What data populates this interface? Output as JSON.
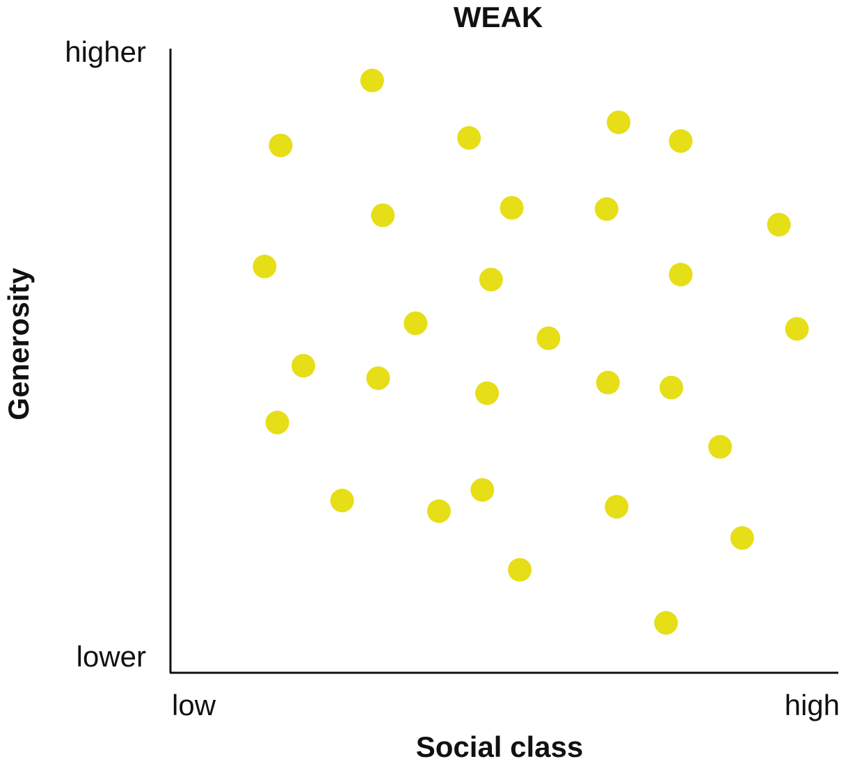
{
  "chart_data": {
    "type": "scatter",
    "title": "WEAK",
    "x_label": "Social class",
    "y_label": "Generosity",
    "xlim": [
      0,
      100
    ],
    "ylim": [
      0,
      100
    ],
    "xticks": [
      {
        "value": 0,
        "label": "low"
      },
      {
        "value": 100,
        "label": "high"
      }
    ],
    "yticks": [
      {
        "value": 0,
        "label": "lower"
      },
      {
        "value": 100,
        "label": "higher"
      }
    ],
    "color": "#e6de17",
    "x": [
      30.2,
      16.5,
      44.7,
      67.1,
      76.4,
      31.8,
      51.1,
      65.3,
      91.1,
      14.1,
      48.0,
      76.4,
      36.7,
      56.6,
      93.8,
      19.9,
      31.1,
      47.4,
      65.5,
      75.0,
      16.0,
      82.3,
      25.7,
      40.2,
      46.7,
      66.8,
      85.6,
      52.3,
      74.2
    ],
    "y": [
      94.9,
      84.5,
      85.7,
      88.2,
      85.2,
      73.3,
      74.5,
      74.3,
      71.8,
      65.1,
      63.0,
      63.8,
      56.0,
      53.6,
      55.1,
      49.2,
      47.2,
      44.8,
      46.5,
      45.7,
      40.1,
      36.2,
      27.6,
      25.9,
      29.3,
      26.6,
      21.6,
      16.5,
      8.0
    ]
  }
}
